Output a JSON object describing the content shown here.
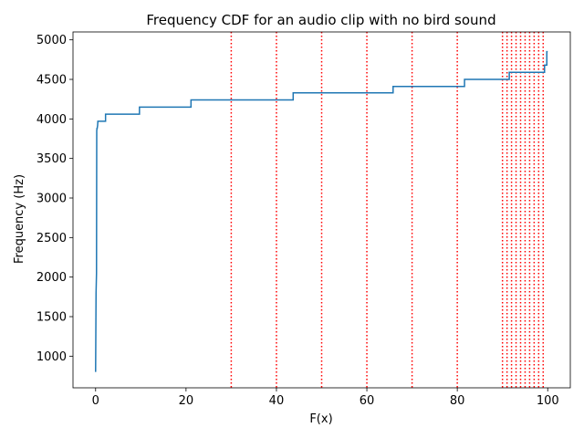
{
  "chart_data": {
    "type": "line",
    "title": "Frequency CDF for an audio clip with no bird sound",
    "xlabel": "F(x)",
    "ylabel": "Frequency (Hz)",
    "xlim": [
      -5,
      105
    ],
    "ylim": [
      600,
      5100
    ],
    "xticks": [
      "0",
      "20",
      "40",
      "60",
      "80",
      "100"
    ],
    "yticks": [
      "1000",
      "1500",
      "2000",
      "2500",
      "3000",
      "3500",
      "4000",
      "4500",
      "5000"
    ],
    "grid": false,
    "line_color": "#1f77b4",
    "percentile_line_color": "#ff0000",
    "percentile_lines": [
      30,
      40,
      50,
      60,
      70,
      80,
      90,
      91,
      92,
      93,
      94,
      95,
      96,
      97,
      98,
      99
    ],
    "series": [
      {
        "x": [
          0,
          0.1,
          0.2,
          0.25,
          0.3,
          0.35,
          0.4,
          0.45,
          0.5,
          0.6,
          2.2,
          2.2,
          9.7,
          9.7,
          21.1,
          21.1,
          43.7,
          43.7,
          65.8,
          65.8,
          81.6,
          81.6,
          91.5,
          91.5,
          99.3,
          99.3,
          99.8,
          99.8,
          100
        ],
        "y": [
          800,
          1800,
          2050,
          3850,
          3880,
          3880,
          3900,
          3920,
          3970,
          3970,
          3970,
          4060,
          4060,
          4150,
          4150,
          4240,
          4240,
          4330,
          4330,
          4410,
          4410,
          4500,
          4500,
          4590,
          4590,
          4680,
          4680,
          4850,
          4850
        ]
      }
    ]
  }
}
